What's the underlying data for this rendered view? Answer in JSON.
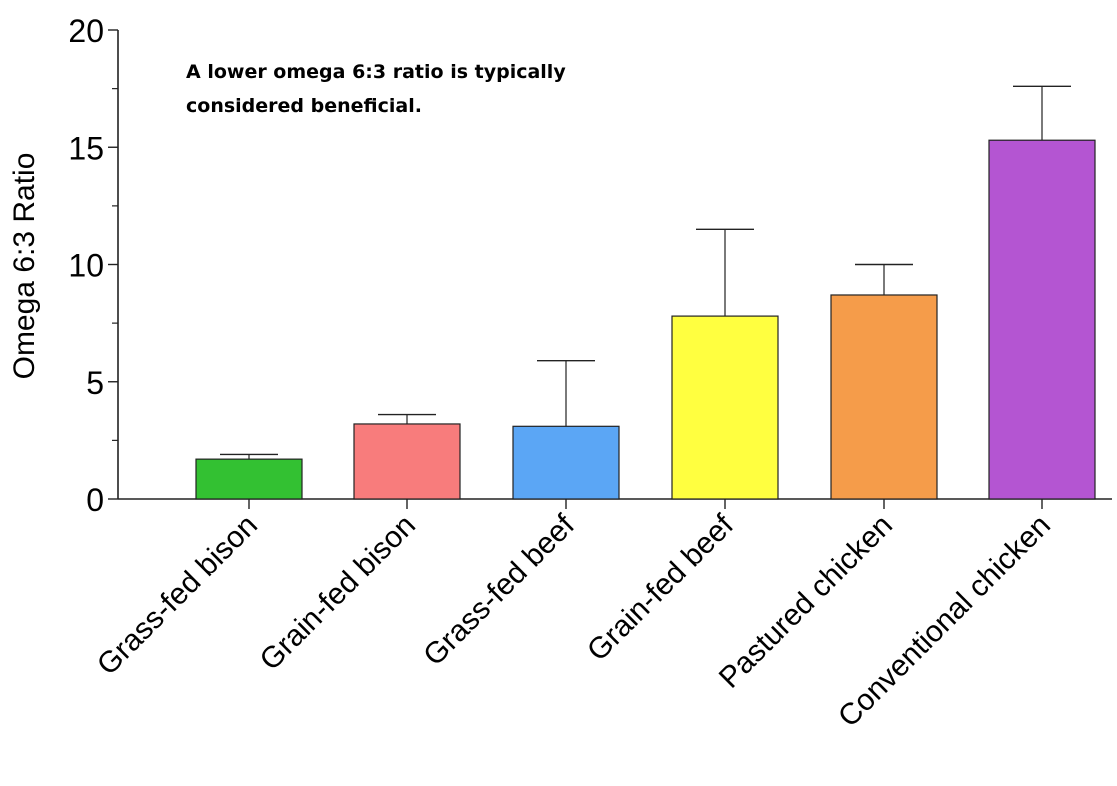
{
  "chart_data": {
    "type": "bar",
    "title": "",
    "xlabel": "",
    "ylabel": "Omega 6:3 Ratio",
    "ylim": [
      0,
      20
    ],
    "yticks": [
      "0",
      "5",
      "10",
      "15",
      "20"
    ],
    "categories": [
      "Grass-fed bison",
      "Grain-fed bison",
      "Grass-fed beef",
      "Grain-fed beef",
      "Pastured chicken",
      "Conventional chicken"
    ],
    "values": [
      1.7,
      3.2,
      3.1,
      7.8,
      8.7,
      15.3
    ],
    "error_upper": [
      1.9,
      3.6,
      5.9,
      11.5,
      10.0,
      17.6
    ],
    "colors": [
      "#33c132",
      "#f87c7c",
      "#5ba6f5",
      "#ffff40",
      "#f59c4a",
      "#b455d2"
    ],
    "annotation": [
      "A lower omega 6:3 ratio is typically",
      "considered beneficial."
    ],
    "grid": false,
    "legend": "none"
  }
}
